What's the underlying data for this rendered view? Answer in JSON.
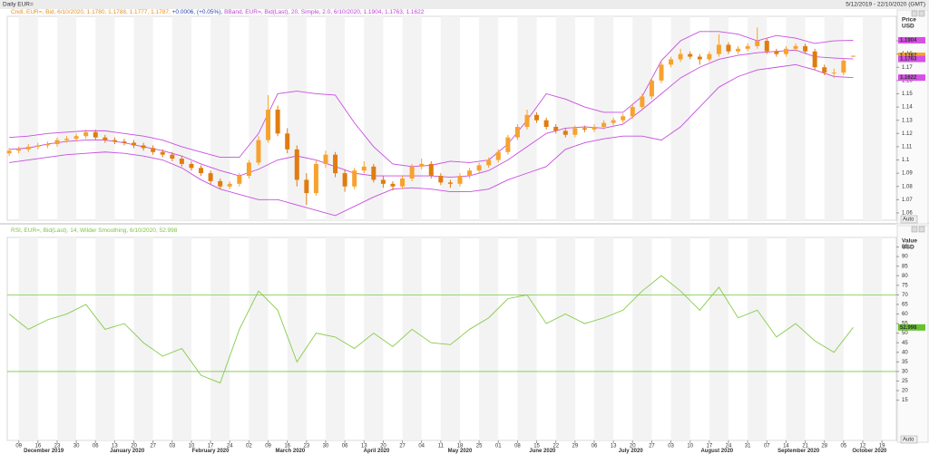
{
  "header": {
    "title": "Daily EUR=",
    "range": "5/12/2019 - 22/10/2020 (GMT)"
  },
  "xaxis": {
    "xlim": [
      -0.2,
      92.5
    ],
    "xticks": [
      {
        "value": 1,
        "label": "09"
      },
      {
        "value": 3,
        "label": "16"
      },
      {
        "value": 5,
        "label": "23"
      },
      {
        "value": 7,
        "label": "30"
      },
      {
        "value": 9,
        "label": "06"
      },
      {
        "value": 11,
        "label": "13"
      },
      {
        "value": 13,
        "label": "20"
      },
      {
        "value": 15,
        "label": "27"
      },
      {
        "value": 17,
        "label": "03"
      },
      {
        "value": 19,
        "label": "10"
      },
      {
        "value": 21,
        "label": "17"
      },
      {
        "value": 23,
        "label": "24"
      },
      {
        "value": 25,
        "label": "02"
      },
      {
        "value": 27,
        "label": "09"
      },
      {
        "value": 29,
        "label": "16"
      },
      {
        "value": 31,
        "label": "23"
      },
      {
        "value": 33,
        "label": "30"
      },
      {
        "value": 35,
        "label": "06"
      },
      {
        "value": 37,
        "label": "13"
      },
      {
        "value": 39,
        "label": "20"
      },
      {
        "value": 41,
        "label": "27"
      },
      {
        "value": 43,
        "label": "04"
      },
      {
        "value": 45,
        "label": "11"
      },
      {
        "value": 47,
        "label": "18"
      },
      {
        "value": 49,
        "label": "25"
      },
      {
        "value": 51,
        "label": "01"
      },
      {
        "value": 53,
        "label": "08"
      },
      {
        "value": 55,
        "label": "15"
      },
      {
        "value": 57,
        "label": "22"
      },
      {
        "value": 59,
        "label": "29"
      },
      {
        "value": 61,
        "label": "06"
      },
      {
        "value": 63,
        "label": "13"
      },
      {
        "value": 65,
        "label": "20"
      },
      {
        "value": 67,
        "label": "27"
      },
      {
        "value": 69,
        "label": "03"
      },
      {
        "value": 71,
        "label": "10"
      },
      {
        "value": 73,
        "label": "17"
      },
      {
        "value": 75,
        "label": "24"
      },
      {
        "value": 77,
        "label": "31"
      },
      {
        "value": 79,
        "label": "07"
      },
      {
        "value": 81,
        "label": "14"
      },
      {
        "value": 83,
        "label": "21"
      },
      {
        "value": 85,
        "label": "28"
      },
      {
        "value": 87,
        "label": "05"
      },
      {
        "value": 89,
        "label": "12"
      },
      {
        "value": 91,
        "label": "19"
      }
    ],
    "months": [
      {
        "value": 3.6,
        "label": "December 2019"
      },
      {
        "value": 12.3,
        "label": "January 2020"
      },
      {
        "value": 21,
        "label": "February 2020"
      },
      {
        "value": 29.3,
        "label": "March 2020"
      },
      {
        "value": 38.3,
        "label": "April 2020"
      },
      {
        "value": 47,
        "label": "May 2020"
      },
      {
        "value": 55.6,
        "label": "June 2020"
      },
      {
        "value": 64.8,
        "label": "July 2020"
      },
      {
        "value": 73.8,
        "label": "August 2020"
      },
      {
        "value": 82.3,
        "label": "September 2020"
      },
      {
        "value": 89.7,
        "label": "October 2020"
      }
    ]
  },
  "chart_data": [
    {
      "type": "candlestick",
      "legend": [
        "Cndl, EUR=, Bid, 6/10/2020, 1.1780, 1.1788, 1.1777, 1.1787,",
        " +0.0006, (+0.05%),",
        " BBand, EUR=, Bid(Last), 20, Simple, 2.0, 6/10/2020, 1.1904, 1.1763, 1.1622"
      ],
      "legend_colors": [
        "#e8901a",
        "#2a3fb0",
        "#c040d8"
      ],
      "up_color": "#f7a22e",
      "down_color": "#e07c10",
      "candles": [
        [
          1.105,
          1.109,
          1.103,
          1.107
        ],
        [
          1.107,
          1.11,
          1.105,
          1.108
        ],
        [
          1.108,
          1.112,
          1.106,
          1.11
        ],
        [
          1.11,
          1.113,
          1.108,
          1.111
        ],
        [
          1.111,
          1.114,
          1.109,
          1.112
        ],
        [
          1.112,
          1.117,
          1.11,
          1.115
        ],
        [
          1.115,
          1.118,
          1.113,
          1.116
        ],
        [
          1.116,
          1.12,
          1.114,
          1.118
        ],
        [
          1.118,
          1.123,
          1.116,
          1.121
        ],
        [
          1.121,
          1.123,
          1.115,
          1.117
        ],
        [
          1.117,
          1.119,
          1.113,
          1.115
        ],
        [
          1.115,
          1.117,
          1.112,
          1.114
        ],
        [
          1.114,
          1.116,
          1.111,
          1.113
        ],
        [
          1.113,
          1.115,
          1.109,
          1.111
        ],
        [
          1.111,
          1.113,
          1.107,
          1.109
        ],
        [
          1.109,
          1.111,
          1.104,
          1.106
        ],
        [
          1.106,
          1.108,
          1.102,
          1.104
        ],
        [
          1.104,
          1.106,
          1.099,
          1.101
        ],
        [
          1.101,
          1.103,
          1.095,
          1.097
        ],
        [
          1.097,
          1.099,
          1.092,
          1.094
        ],
        [
          1.094,
          1.096,
          1.088,
          1.09
        ],
        [
          1.09,
          1.092,
          1.082,
          1.084
        ],
        [
          1.084,
          1.086,
          1.078,
          1.08
        ],
        [
          1.08,
          1.084,
          1.078,
          1.082
        ],
        [
          1.082,
          1.09,
          1.08,
          1.088
        ],
        [
          1.088,
          1.1,
          1.086,
          1.098
        ],
        [
          1.098,
          1.118,
          1.096,
          1.115
        ],
        [
          1.115,
          1.149,
          1.113,
          1.138
        ],
        [
          1.138,
          1.141,
          1.118,
          1.12
        ],
        [
          1.12,
          1.124,
          1.105,
          1.108
        ],
        [
          1.108,
          1.111,
          1.08,
          1.085
        ],
        [
          1.085,
          1.09,
          1.066,
          1.075
        ],
        [
          1.075,
          1.1,
          1.073,
          1.097
        ],
        [
          1.097,
          1.107,
          1.094,
          1.104
        ],
        [
          1.104,
          1.106,
          1.087,
          1.09
        ],
        [
          1.09,
          1.093,
          1.076,
          1.08
        ],
        [
          1.08,
          1.094,
          1.078,
          1.092
        ],
        [
          1.092,
          1.099,
          1.09,
          1.095
        ],
        [
          1.095,
          1.097,
          1.083,
          1.085
        ],
        [
          1.085,
          1.088,
          1.079,
          1.082
        ],
        [
          1.082,
          1.084,
          1.077,
          1.08
        ],
        [
          1.08,
          1.088,
          1.078,
          1.086
        ],
        [
          1.086,
          1.097,
          1.084,
          1.095
        ],
        [
          1.095,
          1.101,
          1.093,
          1.097
        ],
        [
          1.097,
          1.099,
          1.086,
          1.088
        ],
        [
          1.088,
          1.09,
          1.081,
          1.083
        ],
        [
          1.083,
          1.085,
          1.079,
          1.082
        ],
        [
          1.082,
          1.09,
          1.08,
          1.088
        ],
        [
          1.088,
          1.094,
          1.086,
          1.092
        ],
        [
          1.092,
          1.098,
          1.09,
          1.096
        ],
        [
          1.096,
          1.102,
          1.094,
          1.1
        ],
        [
          1.1,
          1.108,
          1.098,
          1.106
        ],
        [
          1.106,
          1.119,
          1.104,
          1.117
        ],
        [
          1.117,
          1.127,
          1.115,
          1.125
        ],
        [
          1.125,
          1.138,
          1.123,
          1.134
        ],
        [
          1.134,
          1.136,
          1.128,
          1.13
        ],
        [
          1.13,
          1.132,
          1.123,
          1.125
        ],
        [
          1.125,
          1.127,
          1.12,
          1.122
        ],
        [
          1.122,
          1.124,
          1.117,
          1.119
        ],
        [
          1.119,
          1.126,
          1.117,
          1.124
        ],
        [
          1.124,
          1.126,
          1.121,
          1.123
        ],
        [
          1.123,
          1.127,
          1.121,
          1.125
        ],
        [
          1.125,
          1.13,
          1.123,
          1.128
        ],
        [
          1.128,
          1.132,
          1.126,
          1.13
        ],
        [
          1.13,
          1.135,
          1.128,
          1.133
        ],
        [
          1.133,
          1.142,
          1.131,
          1.14
        ],
        [
          1.14,
          1.15,
          1.138,
          1.148
        ],
        [
          1.148,
          1.162,
          1.146,
          1.16
        ],
        [
          1.16,
          1.174,
          1.158,
          1.172
        ],
        [
          1.172,
          1.178,
          1.17,
          1.176
        ],
        [
          1.176,
          1.184,
          1.174,
          1.18
        ],
        [
          1.18,
          1.182,
          1.176,
          1.178
        ],
        [
          1.178,
          1.18,
          1.172,
          1.176
        ],
        [
          1.176,
          1.182,
          1.174,
          1.18
        ],
        [
          1.18,
          1.195,
          1.178,
          1.187
        ],
        [
          1.187,
          1.189,
          1.18,
          1.182
        ],
        [
          1.182,
          1.186,
          1.18,
          1.184
        ],
        [
          1.184,
          1.188,
          1.182,
          1.186
        ],
        [
          1.186,
          1.2,
          1.184,
          1.19
        ],
        [
          1.19,
          1.192,
          1.18,
          1.182
        ],
        [
          1.182,
          1.184,
          1.178,
          1.18
        ],
        [
          1.18,
          1.186,
          1.178,
          1.184
        ],
        [
          1.184,
          1.188,
          1.182,
          1.186
        ],
        [
          1.186,
          1.188,
          1.18,
          1.182
        ],
        [
          1.182,
          1.184,
          1.168,
          1.17
        ],
        [
          1.17,
          1.172,
          1.164,
          1.166
        ],
        [
          1.166,
          1.169,
          1.162,
          1.166
        ],
        [
          1.166,
          1.177,
          1.164,
          1.175
        ],
        [
          1.178,
          1.1788,
          1.1777,
          1.1787
        ]
      ],
      "x": [
        0,
        2,
        4,
        6,
        8,
        10,
        12,
        14,
        16,
        18,
        20,
        22,
        24,
        26,
        28,
        30,
        32,
        34,
        36,
        38,
        40,
        42,
        44,
        46,
        48,
        50,
        52,
        54,
        56,
        58,
        60,
        62,
        64,
        66,
        68,
        70,
        72,
        74,
        76,
        78,
        80,
        82,
        84,
        86,
        88
      ],
      "series": [
        {
          "color": "#c84ee0",
          "values": [
            1.117,
            1.118,
            1.12,
            1.121,
            1.122,
            1.122,
            1.12,
            1.118,
            1.115,
            1.11,
            1.106,
            1.102,
            1.102,
            1.12,
            1.15,
            1.152,
            1.15,
            1.149,
            1.128,
            1.11,
            1.097,
            1.095,
            1.096,
            1.099,
            1.098,
            1.1,
            1.112,
            1.13,
            1.15,
            1.146,
            1.14,
            1.136,
            1.136,
            1.148,
            1.175,
            1.19,
            1.197,
            1.197,
            1.195,
            1.19,
            1.194,
            1.192,
            1.188,
            1.19,
            1.1904
          ]
        },
        {
          "color": "#c84ee0",
          "values": [
            1.108,
            1.109,
            1.112,
            1.114,
            1.115,
            1.115,
            1.113,
            1.11,
            1.107,
            1.103,
            1.097,
            1.092,
            1.088,
            1.093,
            1.1,
            1.103,
            1.1,
            1.095,
            1.09,
            1.088,
            1.088,
            1.088,
            1.088,
            1.087,
            1.088,
            1.092,
            1.1,
            1.11,
            1.12,
            1.124,
            1.125,
            1.124,
            1.127,
            1.138,
            1.15,
            1.162,
            1.17,
            1.176,
            1.179,
            1.181,
            1.182,
            1.183,
            1.178,
            1.177,
            1.1763
          ]
        },
        {
          "color": "#c84ee0",
          "values": [
            1.098,
            1.1,
            1.102,
            1.104,
            1.105,
            1.106,
            1.105,
            1.103,
            1.1,
            1.094,
            1.085,
            1.078,
            1.074,
            1.07,
            1.07,
            1.066,
            1.062,
            1.058,
            1.065,
            1.072,
            1.078,
            1.079,
            1.078,
            1.076,
            1.076,
            1.078,
            1.085,
            1.09,
            1.095,
            1.108,
            1.113,
            1.116,
            1.118,
            1.118,
            1.115,
            1.125,
            1.14,
            1.155,
            1.163,
            1.168,
            1.17,
            1.172,
            1.168,
            1.163,
            1.1622
          ]
        }
      ],
      "ylim": [
        1.0545,
        1.2085
      ],
      "yticks": [
        1.06,
        1.07,
        1.08,
        1.09,
        1.1,
        1.11,
        1.12,
        1.13,
        1.14,
        1.15,
        1.16,
        1.17,
        1.18,
        1.19
      ],
      "axis_title": [
        "Price",
        "USD"
      ],
      "tags": [
        1.1904,
        1.1787,
        1.1763,
        1.1622
      ],
      "tag_colors": [
        "#d64fe6",
        "#f7a22e",
        "#d64fe6",
        "#d64fe6"
      ],
      "scale_mode": "Auto"
    },
    {
      "type": "line",
      "legend": [
        "RSI, EUR=, Bid(Last), 14, Wilder Smoothing, 6/10/2020, 52.998"
      ],
      "legend_colors": [
        "#7cc43c"
      ],
      "x": [
        0,
        2,
        4,
        6,
        8,
        10,
        12,
        14,
        16,
        18,
        20,
        22,
        24,
        26,
        28,
        30,
        32,
        34,
        36,
        38,
        40,
        42,
        44,
        46,
        48,
        50,
        52,
        54,
        56,
        58,
        60,
        62,
        64,
        66,
        68,
        70,
        72,
        74,
        76,
        78,
        80,
        82,
        84,
        86,
        88
      ],
      "series": [
        {
          "color": "#86cc4a",
          "values": [
            60,
            52,
            57,
            60,
            65,
            52,
            55,
            45,
            38,
            42,
            28,
            24,
            52,
            72,
            62,
            35,
            50,
            48,
            42,
            50,
            43,
            52,
            45,
            44,
            52,
            58,
            68,
            70,
            55,
            60,
            55,
            58,
            62,
            72,
            80,
            72,
            62,
            74,
            58,
            62,
            48,
            55,
            46,
            40,
            52.998
          ]
        }
      ],
      "ylim": [
        -6,
        100
      ],
      "yticks": [
        15,
        20,
        25,
        30,
        35,
        40,
        45,
        50,
        55,
        60,
        65,
        70,
        75,
        80,
        85,
        90,
        95
      ],
      "levels": [
        70,
        30
      ],
      "level_color": "#78c840",
      "axis_title": [
        "Value",
        "USD"
      ],
      "tags": [
        52.998
      ],
      "tag_colors": [
        "#66c22e"
      ],
      "scale_mode": "Auto"
    }
  ]
}
